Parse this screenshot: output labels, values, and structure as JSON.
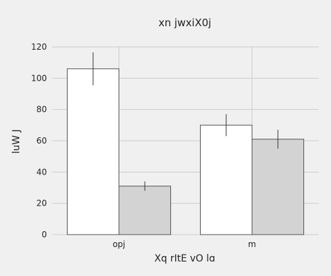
{
  "chart_data": {
    "type": "bar",
    "title": "xn jwxiX0j",
    "xlabel": "Xq rItE vO lɑ",
    "ylabel": "luW J",
    "categories": [
      "opj",
      "m"
    ],
    "series": [
      {
        "values": [
          106,
          70
        ],
        "errors": [
          10.5,
          7
        ],
        "color": "#ffffff"
      },
      {
        "values": [
          31,
          61
        ],
        "errors": [
          3,
          6
        ],
        "color": "#d3d3d3"
      }
    ],
    "ylim": [
      0,
      120
    ],
    "yticks": [
      0,
      20,
      40,
      60,
      80,
      100,
      120
    ],
    "grid": true
  },
  "colors": {
    "background": "#f0f0f0",
    "grid": "#cccccc",
    "bar_edge": "#555555"
  }
}
